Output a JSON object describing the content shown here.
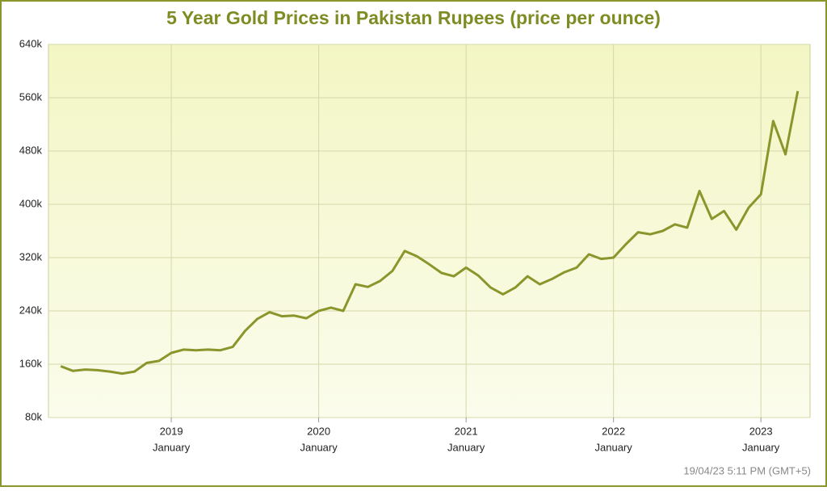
{
  "chart_data": {
    "type": "line",
    "title": "5 Year Gold Prices in Pakistan Rupees (price per ounce)",
    "footer": "19/04/23 5:11 PM (GMT+5)",
    "x": [
      "2018-04",
      "2018-05",
      "2018-06",
      "2018-07",
      "2018-08",
      "2018-09",
      "2018-10",
      "2018-11",
      "2018-12",
      "2019-01",
      "2019-02",
      "2019-03",
      "2019-04",
      "2019-05",
      "2019-06",
      "2019-07",
      "2019-08",
      "2019-09",
      "2019-10",
      "2019-11",
      "2019-12",
      "2020-01",
      "2020-02",
      "2020-03",
      "2020-04",
      "2020-05",
      "2020-06",
      "2020-07",
      "2020-08",
      "2020-09",
      "2020-10",
      "2020-11",
      "2020-12",
      "2021-01",
      "2021-02",
      "2021-03",
      "2021-04",
      "2021-05",
      "2021-06",
      "2021-07",
      "2021-08",
      "2021-09",
      "2021-10",
      "2021-11",
      "2021-12",
      "2022-01",
      "2022-02",
      "2022-03",
      "2022-04",
      "2022-05",
      "2022-06",
      "2022-07",
      "2022-08",
      "2022-09",
      "2022-10",
      "2022-11",
      "2022-12",
      "2023-01",
      "2023-02",
      "2023-03",
      "2023-04"
    ],
    "values": [
      157000,
      150000,
      152000,
      151000,
      149000,
      146000,
      149000,
      162000,
      165000,
      177000,
      182000,
      181000,
      182000,
      181000,
      186000,
      210000,
      228000,
      238000,
      232000,
      233000,
      229000,
      240000,
      245000,
      240000,
      280000,
      276000,
      285000,
      300000,
      330000,
      322000,
      310000,
      297000,
      292000,
      305000,
      293000,
      275000,
      265000,
      275000,
      292000,
      280000,
      288000,
      298000,
      305000,
      325000,
      318000,
      320000,
      340000,
      358000,
      355000,
      360000,
      370000,
      365000,
      420000,
      378000,
      390000,
      362000,
      395000,
      415000,
      525000,
      475000,
      570000
    ],
    "color": "#8a962c",
    "xlim": [
      "2018-03",
      "2023-05"
    ],
    "xticks": [
      {
        "value": "2019-01",
        "label": [
          "2019",
          "January"
        ]
      },
      {
        "value": "2020-01",
        "label": [
          "2020",
          "January"
        ]
      },
      {
        "value": "2021-01",
        "label": [
          "2021",
          "January"
        ]
      },
      {
        "value": "2022-01",
        "label": [
          "2022",
          "January"
        ]
      },
      {
        "value": "2023-01",
        "label": [
          "2023",
          "January"
        ]
      }
    ],
    "ylim": [
      80000,
      640000
    ],
    "yticks": [
      {
        "value": 80000,
        "label": "80k"
      },
      {
        "value": 160000,
        "label": "160k"
      },
      {
        "value": 240000,
        "label": "240k"
      },
      {
        "value": 320000,
        "label": "320k"
      },
      {
        "value": 400000,
        "label": "400k"
      },
      {
        "value": 480000,
        "label": "480k"
      },
      {
        "value": 560000,
        "label": "560k"
      },
      {
        "value": 640000,
        "label": "640k"
      }
    ],
    "grid": true
  }
}
